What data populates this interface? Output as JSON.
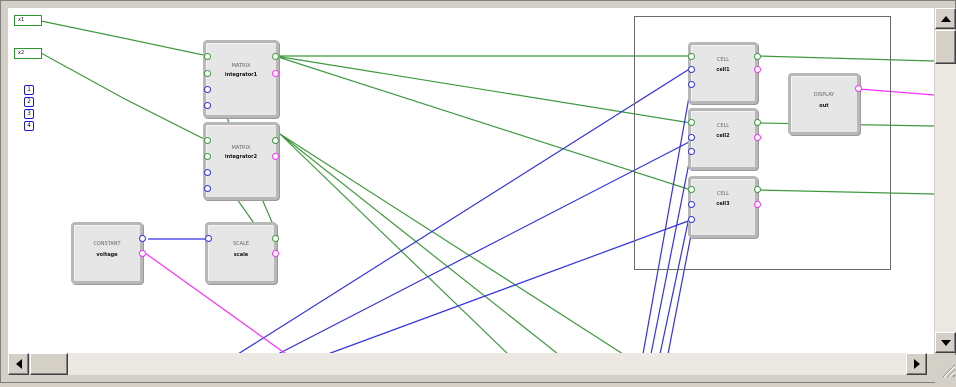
{
  "inports": [
    {
      "id": "in1",
      "label": "x1"
    },
    {
      "id": "in2",
      "label": "x2"
    }
  ],
  "panel_buttons": [
    "1",
    "2",
    "3",
    "4"
  ],
  "blocks": [
    {
      "id": "b1",
      "type": "MATRIX",
      "name": "integrator1"
    },
    {
      "id": "b2",
      "type": "MATRIX",
      "name": "integrator2"
    },
    {
      "id": "b3",
      "type": "CONSTANT",
      "name": "voltage"
    },
    {
      "id": "b4",
      "type": "SCALE",
      "name": "scale"
    },
    {
      "id": "b5",
      "type": "CELL",
      "name": "cell1"
    },
    {
      "id": "b6",
      "type": "CELL",
      "name": "cell2"
    },
    {
      "id": "b7",
      "type": "CELL",
      "name": "cell3"
    },
    {
      "id": "b8",
      "type": "DISPLAY",
      "name": "out"
    }
  ],
  "colors": {
    "data_wire": "#3f9a3f",
    "control_wire": "#3232e6",
    "event_wire": "#ff30ff",
    "canvas": "#ffffff"
  },
  "scrollbars": {
    "vertical_thumb_fraction": 0.12,
    "horizontal_thumb_fraction": 0.0
  }
}
